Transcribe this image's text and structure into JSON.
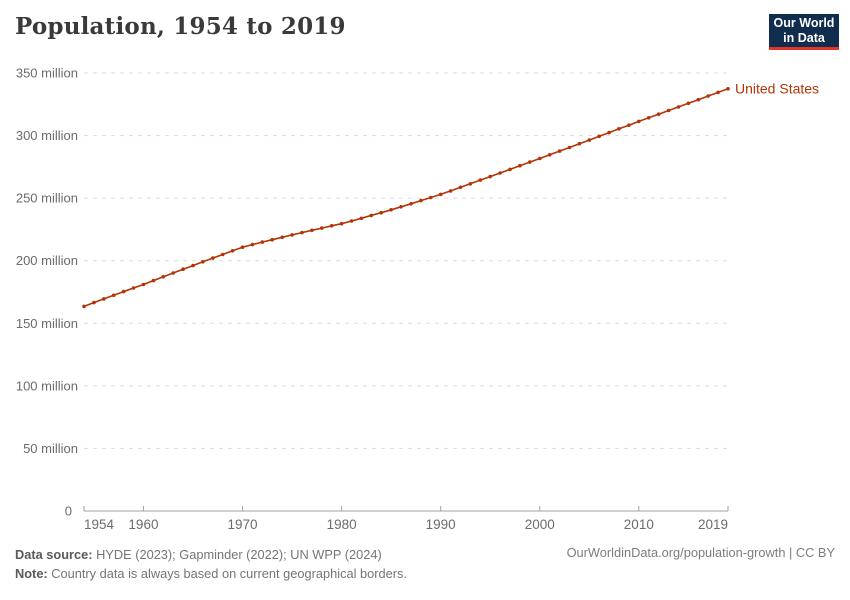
{
  "header": {
    "title": "Population, 1954 to 2019"
  },
  "logo": {
    "line1": "Our World",
    "line2": "in Data",
    "bg_color": "#102d4e",
    "accent_color": "#e0342b"
  },
  "chart_data": {
    "type": "line",
    "title": "Population, 1954 to 2019",
    "xlabel": "",
    "ylabel": "",
    "y_unit": "million",
    "grid": true,
    "legend_position": "end-of-line",
    "xlim": [
      1954,
      2019
    ],
    "ylim": [
      0,
      350
    ],
    "xticks": [
      1954,
      1960,
      1970,
      1980,
      1990,
      2000,
      2010,
      2019
    ],
    "yticks": [
      {
        "value": 0,
        "label": "0"
      },
      {
        "value": 50,
        "label": "50 million"
      },
      {
        "value": 100,
        "label": "100 million"
      },
      {
        "value": 150,
        "label": "150 million"
      },
      {
        "value": 200,
        "label": "200 million"
      },
      {
        "value": 250,
        "label": "250 million"
      },
      {
        "value": 300,
        "label": "300 million"
      },
      {
        "value": 350,
        "label": "350 million"
      }
    ],
    "x": [
      1954,
      1955,
      1956,
      1957,
      1958,
      1959,
      1960,
      1961,
      1962,
      1963,
      1964,
      1965,
      1966,
      1967,
      1968,
      1969,
      1970,
      1971,
      1972,
      1973,
      1974,
      1975,
      1976,
      1977,
      1978,
      1979,
      1980,
      1981,
      1982,
      1983,
      1984,
      1985,
      1986,
      1987,
      1988,
      1989,
      1990,
      1991,
      1992,
      1993,
      1994,
      1995,
      1996,
      1997,
      1998,
      1999,
      2000,
      2001,
      2002,
      2003,
      2004,
      2005,
      2006,
      2007,
      2008,
      2009,
      2010,
      2011,
      2012,
      2013,
      2014,
      2015,
      2016,
      2017,
      2018,
      2019
    ],
    "series": [
      {
        "name": "United States",
        "color": "#b13507",
        "values_million": [
          163.5,
          166.5,
          169.5,
          172.4,
          175.3,
          178.2,
          181.0,
          184.1,
          187.2,
          190.2,
          193.2,
          196.1,
          199.1,
          202.1,
          205.0,
          207.9,
          210.8,
          212.9,
          214.9,
          216.8,
          218.7,
          220.6,
          222.5,
          224.3,
          226.1,
          227.9,
          229.6,
          231.7,
          233.9,
          236.2,
          238.4,
          240.7,
          243.1,
          245.5,
          248.0,
          250.5,
          253.0,
          255.8,
          258.7,
          261.5,
          264.4,
          267.2,
          270.1,
          273.0,
          275.9,
          278.8,
          281.7,
          284.6,
          287.6,
          290.5,
          293.5,
          296.4,
          299.4,
          302.4,
          305.4,
          308.3,
          311.3,
          314.2,
          317.1,
          320.0,
          322.9,
          325.8,
          328.7,
          331.6,
          334.5,
          337.4
        ]
      }
    ],
    "colors": {
      "grid": "#dcdcdc",
      "axis": "#a1a1a1",
      "tick_text": "#6b6b6b"
    }
  },
  "footer": {
    "source_label": "Data source:",
    "source_text": " HYDE (2023); Gapminder (2022); UN WPP (2024)",
    "note_label": "Note:",
    "note_text": " Country data is always based on current geographical borders.",
    "link_text": "OurWorldinData.org/population-growth | CC BY"
  }
}
